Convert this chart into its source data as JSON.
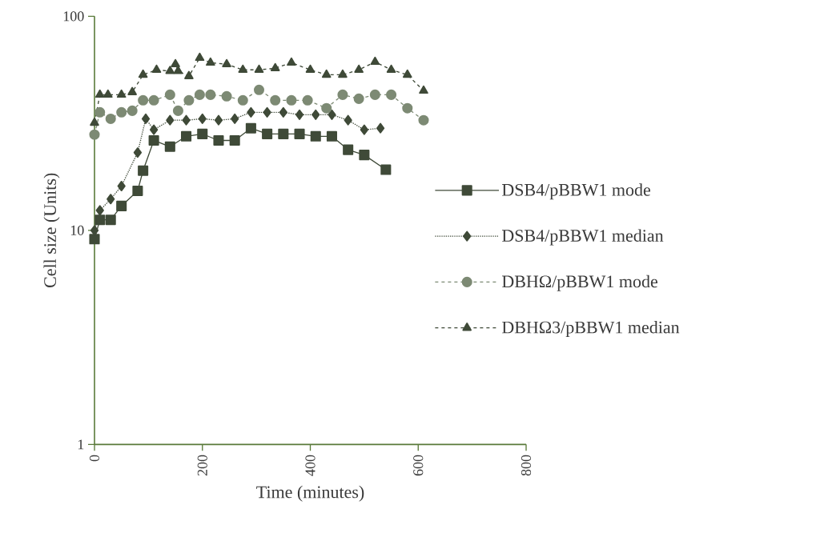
{
  "chart_data": {
    "type": "line",
    "xlabel": "Time (minutes)",
    "ylabel": "Cell size (Units)",
    "log": "y",
    "xlim": [
      0,
      800
    ],
    "xticks": [
      0,
      200,
      400,
      600,
      800
    ],
    "ylim": [
      1,
      100
    ],
    "yticks": [
      1,
      10,
      100
    ],
    "legend": "right",
    "series": [
      {
        "name": "DSB4/pBBW1 mode",
        "color": "#3f4a38",
        "marker": "square",
        "line_style": "solid",
        "x": [
          0,
          10,
          30,
          50,
          80,
          90,
          110,
          140,
          170,
          200,
          230,
          260,
          290,
          320,
          350,
          380,
          410,
          440,
          470,
          500,
          540
        ],
        "values": [
          9.1,
          11.2,
          11.2,
          13,
          15.3,
          19,
          26.3,
          24.6,
          27.5,
          28.2,
          26.3,
          26.3,
          30,
          28.2,
          28.2,
          28.2,
          27.5,
          27.5,
          23.8,
          22.5,
          19.2
        ]
      },
      {
        "name": "DSB4/pBBW1 median",
        "color": "#3f4a38",
        "marker": "diamond",
        "line_style": "dotted",
        "x": [
          0,
          10,
          30,
          50,
          80,
          95,
          110,
          140,
          170,
          200,
          230,
          260,
          290,
          320,
          350,
          380,
          410,
          440,
          470,
          500,
          530
        ],
        "values": [
          10,
          12.4,
          14,
          16.1,
          23.1,
          33.2,
          29.5,
          32.7,
          32.7,
          33.2,
          32.7,
          33.2,
          35.6,
          35.6,
          35.6,
          34.7,
          34.7,
          34.7,
          32.7,
          29.5,
          30
        ]
      },
      {
        "name": "DBHΩ/pBBW1  mode",
        "color": "#7d8a74",
        "marker": "circle",
        "line_style": "dashed",
        "x": [
          0,
          10,
          30,
          50,
          70,
          90,
          110,
          140,
          155,
          175,
          195,
          215,
          245,
          275,
          305,
          335,
          365,
          395,
          430,
          460,
          490,
          520,
          550,
          580,
          610
        ],
        "values": [
          28,
          35.6,
          33.2,
          35.6,
          36.2,
          40.5,
          40.5,
          43,
          36.2,
          40.5,
          43,
          43,
          42.3,
          40.5,
          45.3,
          40.5,
          40.5,
          40.5,
          37.2,
          43,
          41.2,
          43,
          43,
          37.2,
          32.7
        ]
      },
      {
        "name": "DBHΩ3/pBBW1  median",
        "color": "#3f4a38",
        "marker": "triangle",
        "line_style": "dashed",
        "x": [
          0,
          10,
          25,
          50,
          70,
          90,
          115,
          140,
          150,
          155,
          175,
          195,
          215,
          245,
          275,
          305,
          335,
          365,
          400,
          430,
          460,
          490,
          520,
          550,
          580,
          610
        ],
        "values": [
          31.8,
          43,
          43,
          43,
          44.2,
          53.3,
          56.2,
          55.5,
          59.7,
          55.5,
          52.5,
          63.9,
          60.7,
          59.7,
          56.2,
          56.2,
          57.2,
          60.7,
          56.2,
          53.3,
          53.3,
          56.2,
          61.2,
          56.2,
          53.3,
          44.9
        ]
      }
    ]
  }
}
